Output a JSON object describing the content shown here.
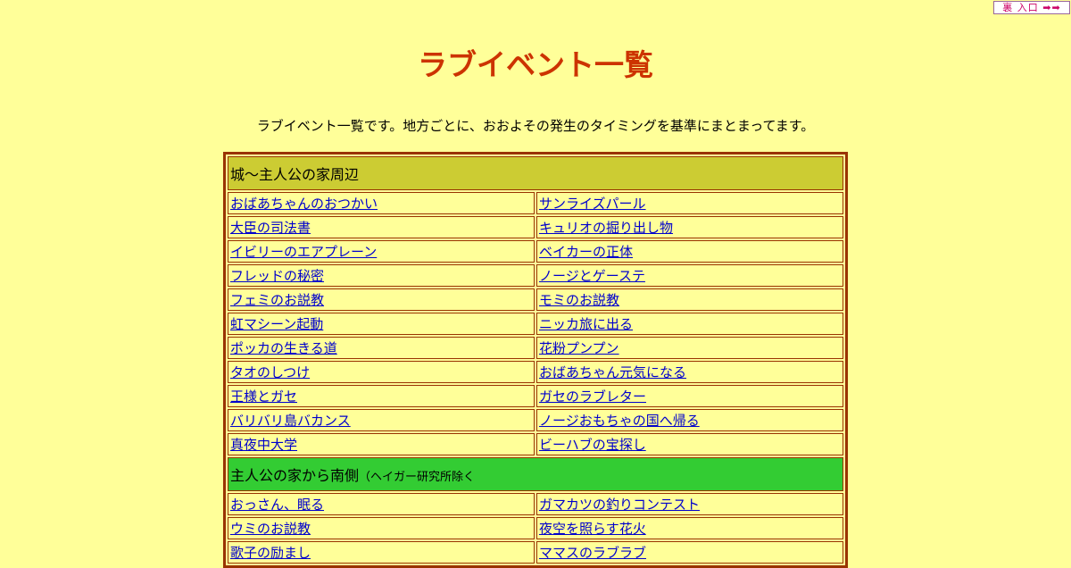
{
  "topnav": {
    "label": "裏 入口 ➡➡"
  },
  "title": "ラブイベント一覧",
  "intro": "ラブイベント一覧です。地方ごとに、おおよその発生のタイミングを基準にまとまってます。",
  "sections": [
    {
      "title": "城～主人公の家周辺",
      "note": "",
      "color": "#cccc33",
      "items": [
        [
          "おばあちゃんのおつかい",
          "サンライズパール"
        ],
        [
          "大臣の司法書",
          "キュリオの掘り出し物"
        ],
        [
          "イビリーのエアプレーン",
          "ベイカーの正体"
        ],
        [
          "フレッドの秘密",
          "ノージとゲーステ"
        ],
        [
          "フェミのお説教",
          "モミのお説教"
        ],
        [
          "虹マシーン起動",
          "ニッカ旅に出る"
        ],
        [
          "ポッカの生きる道",
          "花粉プンプン"
        ],
        [
          "タオのしつけ",
          "おばあちゃん元気になる"
        ],
        [
          "王様とガセ",
          "ガセのラブレター"
        ],
        [
          "バリバリ島バカンス",
          "ノージおもちゃの国へ帰る"
        ],
        [
          "真夜中大学",
          "ビーハブの宝探し"
        ]
      ]
    },
    {
      "title": "主人公の家から南側",
      "note": "（ヘイガー研究所除く",
      "color": "#33cc33",
      "items": [
        [
          "おっさん、眠る",
          "ガマカツの釣りコンテスト"
        ],
        [
          "ウミのお説教",
          "夜空を照らす花火"
        ],
        [
          "歌子の励まし",
          "ママスのラブラブ"
        ]
      ]
    }
  ]
}
